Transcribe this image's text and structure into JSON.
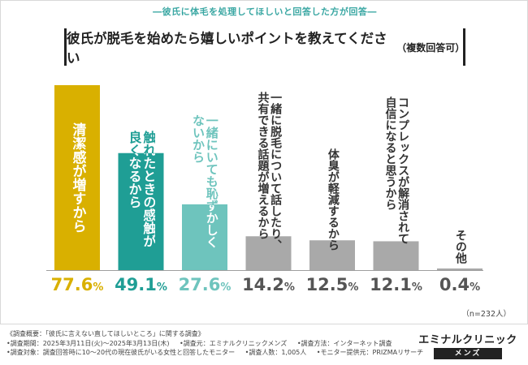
{
  "header": {
    "subtitle": "―彼氏に体毛を処理してほしいと回答した方が回答―",
    "title": "彼氏が脱毛を始めたら嬉しいポイントを教えてください",
    "title_note": "（複数回答可）"
  },
  "chart_data": {
    "type": "bar",
    "title": "彼氏が脱毛を始めたら嬉しいポイントを教えてください（複数回答可）",
    "categories": [
      "清潔感が増すから",
      "触れたときの感触が良くなるから",
      "一緒にいても恥ずかしくないから",
      "一緒に脱毛について話したり、共有できる話題が増えるから",
      "体臭が軽減するから",
      "コンプレックスが解消されて自信になると思うから",
      "その他"
    ],
    "label_lines": [
      [
        "清潔感が増すから"
      ],
      [
        "触れたときの感触が",
        "良くなるから"
      ],
      [
        "一緒にいても恥ずかしく",
        "ないから"
      ],
      [
        "一緒に脱毛について話したり、",
        "共有できる話題が増えるから"
      ],
      [
        "体臭が軽減するから"
      ],
      [
        "コンプレックスが解消されて",
        "自信になると思うから"
      ],
      [
        "その他"
      ]
    ],
    "values": [
      77.6,
      49.1,
      27.6,
      14.2,
      12.5,
      12.1,
      0.4
    ],
    "value_labels": [
      "77.6",
      "49.1",
      "27.6",
      "14.2",
      "12.5",
      "12.1",
      "0.4"
    ],
    "unit": "%",
    "ylim": [
      0,
      77.6
    ],
    "n_label": "（n=232人）",
    "colors": {
      "highlight": [
        "#d9b000",
        "#1f9e95",
        "#6ec4bd"
      ],
      "highlight_pct": [
        "#d9b000",
        "#1f9e95",
        "#6ec4bd"
      ],
      "gray": "#a9a9a9",
      "gray_pct": "#555555",
      "label_on_bar": "#ffffff",
      "label_dark": "#333333",
      "baseline": "#9e9e9e"
    }
  },
  "footer": {
    "line1": "《調査概要：「彼氏に言えない直してほしいところ」に関する調査》",
    "line2": [
      "•調査期間：2025年3月11日(火)～2025年3月13日(木)",
      "•調査元：エミナルクリニックメンズ",
      "•調査方法：インターネット調査"
    ],
    "line3": [
      "•調査対象：調査回答時に10～20代の現在彼氏がいる女性と回答したモニター",
      "•調査人数：1,005人",
      "•モニター提供元：PRIZMAリサーチ"
    ]
  },
  "logo": {
    "name": "エミナルクリニック",
    "band": "メンズ"
  }
}
